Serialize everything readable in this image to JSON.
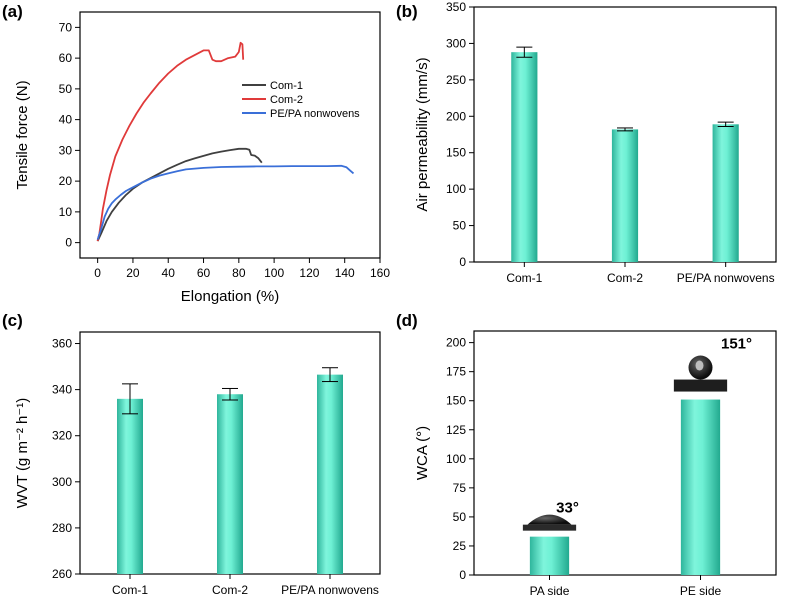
{
  "chart_data": [
    {
      "panel": "(a)",
      "type": "line",
      "xlabel": "Elongation (%)",
      "ylabel": "Tensile force (N)",
      "xlim": [
        -10,
        160
      ],
      "ylim": [
        -5,
        75
      ],
      "xticks": [
        0,
        20,
        40,
        60,
        80,
        100,
        120,
        140,
        160
      ],
      "yticks": [
        0,
        10,
        20,
        30,
        40,
        50,
        60,
        70
      ],
      "legend": "right",
      "series": [
        {
          "name": "Com-1",
          "color": "#404040",
          "x": [
            0,
            2,
            5,
            8,
            12,
            16,
            20,
            25,
            30,
            35,
            40,
            45,
            50,
            55,
            60,
            65,
            70,
            75,
            80,
            84,
            86,
            87,
            89,
            91,
            93
          ],
          "y": [
            0.5,
            3,
            7,
            10,
            13,
            15.5,
            17.5,
            19.5,
            21,
            22.5,
            24,
            25.3,
            26.5,
            27.4,
            28.2,
            29,
            29.6,
            30.1,
            30.5,
            30.5,
            30.2,
            28.5,
            28.3,
            27.5,
            26
          ]
        },
        {
          "name": "Com-2",
          "color": "#e03a3a",
          "x": [
            0,
            1,
            2,
            3,
            5,
            7,
            10,
            14,
            18,
            22,
            26,
            30,
            35,
            40,
            45,
            50,
            55,
            60,
            63,
            65,
            67,
            70,
            74,
            78,
            80,
            81,
            82,
            82.5
          ],
          "y": [
            0.5,
            3,
            7,
            11,
            17,
            22,
            28,
            33.5,
            38,
            42,
            45.5,
            48.5,
            52,
            55,
            57.5,
            59.5,
            61,
            62.5,
            62.5,
            59.5,
            59,
            59,
            60,
            60.5,
            62,
            65,
            64.5,
            59.5
          ]
        },
        {
          "name": "PE/PA nonwovens",
          "color": "#3a6fd8",
          "x": [
            0,
            2,
            4,
            6,
            8,
            10,
            13,
            16,
            20,
            25,
            30,
            35,
            40,
            45,
            50,
            60,
            70,
            80,
            90,
            100,
            110,
            120,
            130,
            138,
            141,
            143,
            145
          ],
          "y": [
            1,
            4.5,
            8.5,
            11,
            12.8,
            14,
            15.5,
            16.8,
            18,
            19.5,
            20.8,
            21.8,
            22.5,
            23.2,
            23.8,
            24.3,
            24.6,
            24.7,
            24.8,
            24.8,
            24.9,
            24.9,
            24.9,
            25,
            24.5,
            23.5,
            22.5
          ]
        }
      ]
    },
    {
      "panel": "(b)",
      "type": "bar",
      "categories": [
        "Com-1",
        "Com-2",
        "PE/PA nonwovens"
      ],
      "values": [
        288,
        182,
        189
      ],
      "errors": [
        7,
        2,
        3
      ],
      "ylabel": "Air permeability (mm/s)",
      "ylim": [
        0,
        350
      ],
      "yticks": [
        0,
        50,
        100,
        150,
        200,
        250,
        300,
        350
      ]
    },
    {
      "panel": "(c)",
      "type": "bar",
      "categories": [
        "Com-1",
        "Com-2",
        "PE/PA nonwovens"
      ],
      "values": [
        336,
        338,
        346.5
      ],
      "errors": [
        6.5,
        2.5,
        3
      ],
      "ylabel": "WVT (g m⁻² h⁻¹)",
      "ylim": [
        260,
        365
      ],
      "yticks": [
        260,
        280,
        300,
        320,
        340,
        360
      ]
    },
    {
      "panel": "(d)",
      "type": "bar",
      "categories": [
        "PA side",
        "PE side"
      ],
      "values": [
        33,
        151
      ],
      "annotations": [
        "33°",
        "151°"
      ],
      "ylabel": "WCA (°)",
      "ylim": [
        0,
        210
      ],
      "yticks": [
        0,
        25,
        50,
        75,
        100,
        125,
        150,
        175,
        200
      ]
    }
  ]
}
